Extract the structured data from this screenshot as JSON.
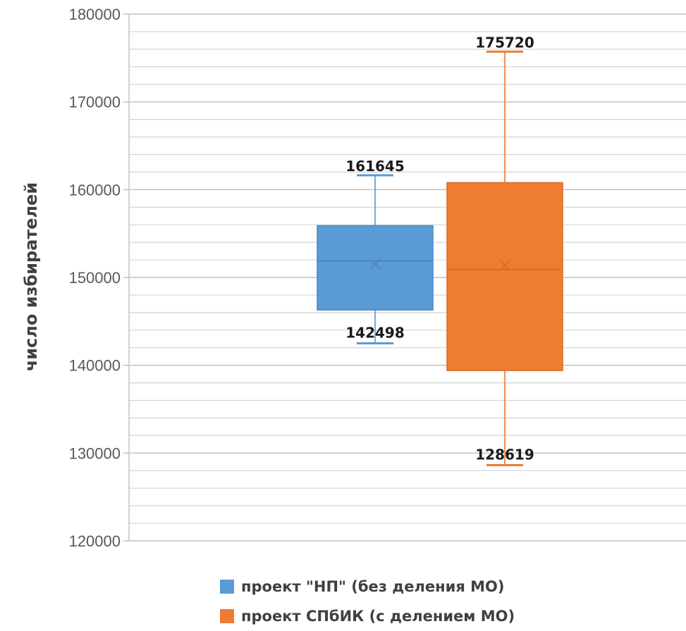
{
  "chart_data": {
    "type": "box",
    "title": "",
    "xlabel": "",
    "ylabel": "число избирателей",
    "ylim": [
      120000,
      180000
    ],
    "y_ticks": [
      120000,
      130000,
      140000,
      150000,
      160000,
      170000,
      180000
    ],
    "y_tick_labels": [
      "120000",
      "130000",
      "140000",
      "150000",
      "160000",
      "170000",
      "180000"
    ],
    "grid": true,
    "legend_position": "bottom",
    "series": [
      {
        "name": "проект \"НП\" (без деления МО)",
        "color": "#5b9bd5",
        "min": 142498,
        "q1": 146300,
        "median": 151900,
        "mean": 151500,
        "q3": 155900,
        "max": 161645,
        "labels": {
          "max": "161645",
          "min": "142498"
        }
      },
      {
        "name": "проект СПбИК (с делением МО)",
        "color": "#ed7d31",
        "min": 128619,
        "q1": 139400,
        "median": 150900,
        "mean": 151400,
        "q3": 160800,
        "max": 175720,
        "labels": {
          "max": "175720",
          "min": "128619"
        }
      }
    ]
  }
}
